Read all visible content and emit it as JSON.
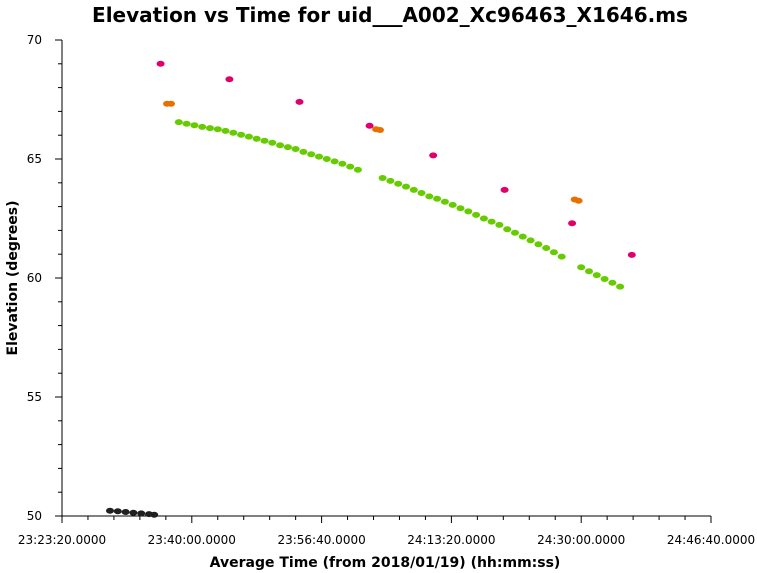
{
  "chart_data": {
    "type": "scatter",
    "title": "Elevation vs Time for uid___A002_Xc96463_X1646.ms",
    "xlabel": "Average Time (from 2018/01/19) (hh:mm:ss)",
    "ylabel": "Elevation (degrees)",
    "x_unit": "hh:mm:ss",
    "xlim": [
      "23:23:20",
      "24:46:40"
    ],
    "ylim": [
      50,
      70
    ],
    "x_ticks": [
      "23:23:20.0000",
      "23:40:00.0000",
      "23:56:40.0000",
      "24:13:20.0000",
      "24:30:00.0000",
      "24:46:40.0000"
    ],
    "y_ticks": [
      "50",
      "55",
      "60",
      "65",
      "70"
    ],
    "minor_x_per_major": 4,
    "minor_y_per_major": 4,
    "grid": false,
    "legend": "none",
    "series": [
      {
        "color": "#202020",
        "points": [
          [
            "23:29:30",
            50.22
          ],
          [
            "23:30:30",
            50.2
          ],
          [
            "23:31:30",
            50.17
          ],
          [
            "23:32:30",
            50.14
          ],
          [
            "23:33:30",
            50.11
          ],
          [
            "23:34:30",
            50.08
          ],
          [
            "23:35:10",
            50.05
          ]
        ]
      },
      {
        "color": "#e0006a",
        "points": [
          [
            "23:36:00",
            69.0
          ],
          [
            "23:44:50",
            68.35
          ],
          [
            "23:53:50",
            67.4
          ],
          [
            "24:02:50",
            66.4
          ],
          [
            "24:11:00",
            65.15
          ],
          [
            "24:20:10",
            63.7
          ],
          [
            "24:28:50",
            62.3
          ],
          [
            "24:36:30",
            60.97
          ]
        ]
      },
      {
        "color": "#e87000",
        "points": [
          [
            "23:36:50",
            67.32
          ],
          [
            "23:37:20",
            67.32
          ],
          [
            "24:03:40",
            66.25
          ],
          [
            "24:04:10",
            66.22
          ],
          [
            "24:29:10",
            63.3
          ],
          [
            "24:29:40",
            63.25
          ]
        ]
      },
      {
        "color": "#66cc00",
        "points": [
          [
            "23:38:20",
            66.55
          ],
          [
            "23:39:20",
            66.48
          ],
          [
            "23:40:20",
            66.42
          ],
          [
            "23:41:20",
            66.35
          ],
          [
            "23:42:20",
            66.3
          ],
          [
            "23:43:20",
            66.25
          ],
          [
            "23:44:20",
            66.18
          ],
          [
            "23:45:20",
            66.1
          ],
          [
            "23:46:20",
            66.02
          ],
          [
            "23:47:20",
            65.94
          ],
          [
            "23:48:20",
            65.85
          ],
          [
            "23:49:20",
            65.77
          ],
          [
            "23:50:20",
            65.68
          ],
          [
            "23:51:20",
            65.58
          ],
          [
            "23:52:20",
            65.5
          ],
          [
            "23:53:20",
            65.42
          ],
          [
            "23:54:20",
            65.3
          ],
          [
            "23:55:20",
            65.2
          ],
          [
            "23:56:20",
            65.1
          ],
          [
            "23:57:20",
            65.0
          ],
          [
            "23:58:20",
            64.9
          ],
          [
            "23:59:20",
            64.8
          ],
          [
            "24:00:20",
            64.68
          ],
          [
            "24:01:20",
            64.55
          ],
          [
            "24:04:30",
            64.2
          ],
          [
            "24:05:30",
            64.08
          ],
          [
            "24:06:30",
            63.96
          ],
          [
            "24:07:30",
            63.84
          ],
          [
            "24:08:30",
            63.7
          ],
          [
            "24:09:30",
            63.57
          ],
          [
            "24:10:30",
            63.43
          ],
          [
            "24:11:30",
            63.33
          ],
          [
            "24:12:30",
            63.2
          ],
          [
            "24:13:30",
            63.07
          ],
          [
            "24:14:30",
            62.93
          ],
          [
            "24:15:30",
            62.8
          ],
          [
            "24:16:30",
            62.65
          ],
          [
            "24:17:30",
            62.5
          ],
          [
            "24:18:30",
            62.37
          ],
          [
            "24:19:30",
            62.23
          ],
          [
            "24:20:30",
            62.05
          ],
          [
            "24:21:30",
            61.9
          ],
          [
            "24:22:30",
            61.74
          ],
          [
            "24:23:30",
            61.58
          ],
          [
            "24:24:30",
            61.42
          ],
          [
            "24:25:30",
            61.26
          ],
          [
            "24:26:30",
            61.08
          ],
          [
            "24:27:30",
            60.9
          ],
          [
            "24:30:00",
            60.45
          ],
          [
            "24:31:00",
            60.28
          ],
          [
            "24:32:00",
            60.12
          ],
          [
            "24:33:00",
            59.96
          ],
          [
            "24:34:00",
            59.8
          ],
          [
            "24:35:00",
            59.64
          ]
        ]
      }
    ]
  }
}
